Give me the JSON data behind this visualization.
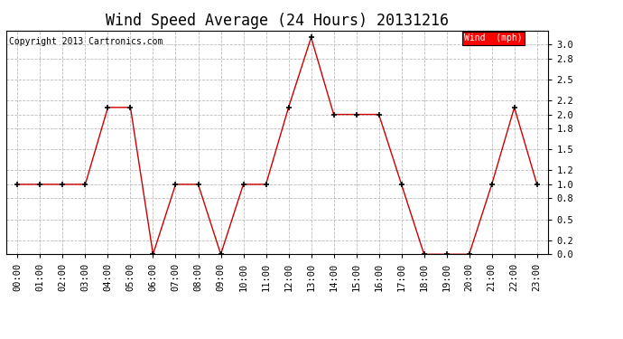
{
  "title": "Wind Speed Average (24 Hours) 20131216",
  "copyright": "Copyright 2013 Cartronics.com",
  "legend_label": "Wind  (mph)",
  "legend_bg": "#ff0000",
  "legend_text_color": "#ffffff",
  "x_labels": [
    "00:00",
    "01:00",
    "02:00",
    "03:00",
    "04:00",
    "05:00",
    "06:00",
    "07:00",
    "08:00",
    "09:00",
    "10:00",
    "11:00",
    "12:00",
    "13:00",
    "14:00",
    "15:00",
    "16:00",
    "17:00",
    "18:00",
    "19:00",
    "20:00",
    "21:00",
    "22:00",
    "23:00"
  ],
  "y_values": [
    1.0,
    1.0,
    1.0,
    1.0,
    2.1,
    2.1,
    0.0,
    1.0,
    1.0,
    0.0,
    1.0,
    1.0,
    2.1,
    3.1,
    2.0,
    2.0,
    2.0,
    1.0,
    0.0,
    0.0,
    0.0,
    1.0,
    2.1,
    1.0
  ],
  "line_color": "#cc0000",
  "marker_color": "#000000",
  "bg_color": "#ffffff",
  "grid_color": "#bbbbbb",
  "ylim": [
    0.0,
    3.2
  ],
  "yticks": [
    0.0,
    0.2,
    0.5,
    0.8,
    1.0,
    1.2,
    1.5,
    1.8,
    2.0,
    2.2,
    2.5,
    2.8,
    3.0
  ],
  "title_fontsize": 12,
  "axis_fontsize": 7.5,
  "copyright_fontsize": 7
}
